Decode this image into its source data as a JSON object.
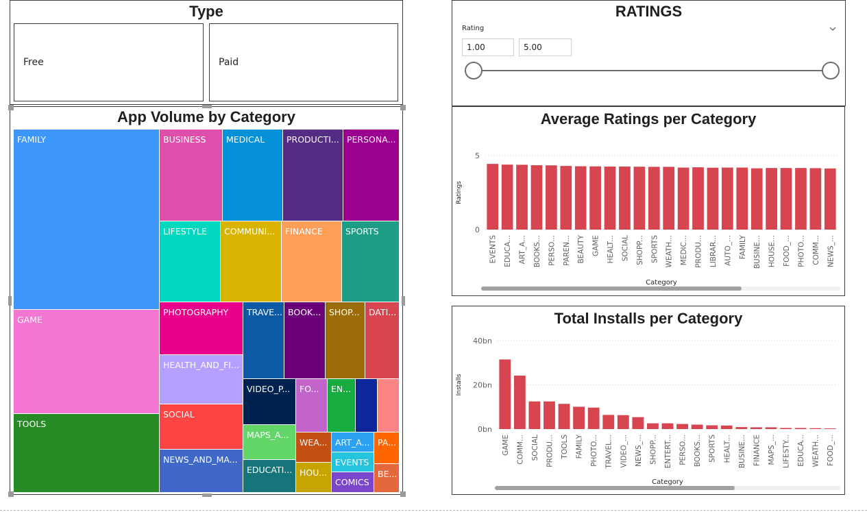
{
  "type_slicer": {
    "title": "Type",
    "options": [
      "Free",
      "Paid"
    ]
  },
  "ratings_slicer": {
    "title": "RATINGS",
    "label": "Rating",
    "min_value": "1.00",
    "max_value": "5.00",
    "range": [
      1.0,
      5.0
    ]
  },
  "treemap": {
    "title": "App Volume by Category",
    "labels": [
      "FAMILY",
      "GAME",
      "TOOLS",
      "BUSINESS",
      "MEDICAL",
      "PRODUCTI...",
      "PERSONA...",
      "LIFESTYLE",
      "COMMUNI...",
      "FINANCE",
      "SPORTS",
      "PHOTOGRAPHY",
      "HEALTH_AND_FI...",
      "SOCIAL",
      "NEWS_AND_MA...",
      "TRAVE...",
      "BOOK...",
      "SHOP...",
      "DATI...",
      "VIDEO_P...",
      "FO...",
      "EN...",
      "MAPS_A...",
      "EDUCATI...",
      "WEA...",
      "HOU...",
      "ART_A...",
      "EVENTS",
      "COMICS",
      "PA...",
      "BE..."
    ]
  },
  "chart_data": [
    {
      "type": "bar",
      "title": "Average Ratings per Category",
      "xlabel": "Category",
      "ylabel": "Ratings",
      "categories": [
        "EVENTS",
        "EDUCA...",
        "ART_A...",
        "BOOKS...",
        "PERSO...",
        "PAREN...",
        "BEAUTY",
        "GAME",
        "HEALT...",
        "SOCIAL",
        "SHOPP...",
        "SPORTS",
        "WEATH...",
        "MEDIC...",
        "PRODU...",
        "LIBRAR...",
        "AUTO_...",
        "FAMILY",
        "BUSINE...",
        "HOUSE...",
        "FOOD_...",
        "PHOTO...",
        "COMM...",
        "NEWS_..."
      ],
      "values": [
        4.44,
        4.39,
        4.38,
        4.35,
        4.34,
        4.3,
        4.28,
        4.27,
        4.26,
        4.26,
        4.25,
        4.24,
        4.24,
        4.19,
        4.21,
        4.18,
        4.19,
        4.19,
        4.14,
        4.16,
        4.16,
        4.16,
        4.15,
        4.13
      ],
      "yticks": [
        "5",
        "0"
      ],
      "ylim": [
        0,
        5
      ],
      "bar_color": "#d64550",
      "grid": true
    },
    {
      "type": "bar",
      "title": "Total Installs per Category",
      "xlabel": "Category",
      "ylabel": "Installs",
      "categories": [
        "GAME",
        "COMM...",
        "SOCIAL",
        "PRODU...",
        "TOOLS",
        "FAMILY",
        "PHOTO...",
        "TRAVEL...",
        "VIDEO_...",
        "NEWS_...",
        "SHOPP...",
        "ENTERT...",
        "PERSO...",
        "BOOKS...",
        "SPORTS",
        "HEALT...",
        "BUSINE...",
        "FINANCE",
        "MAPS_...",
        "LIFESTY...",
        "EDUCA...",
        "WEATH...",
        "FOOD_..."
      ],
      "values": [
        31.5,
        24.2,
        12.5,
        12.5,
        11.4,
        10.1,
        9.7,
        6.4,
        6.3,
        5.4,
        2.6,
        2.6,
        2.3,
        2.0,
        1.7,
        1.6,
        0.9,
        0.8,
        0.8,
        0.5,
        0.5,
        0.4,
        0.3
      ],
      "yticks": [
        "40bn",
        "20bn",
        "0bn"
      ],
      "ylim": [
        0,
        40
      ],
      "bar_color": "#d64550",
      "grid": true
    }
  ]
}
